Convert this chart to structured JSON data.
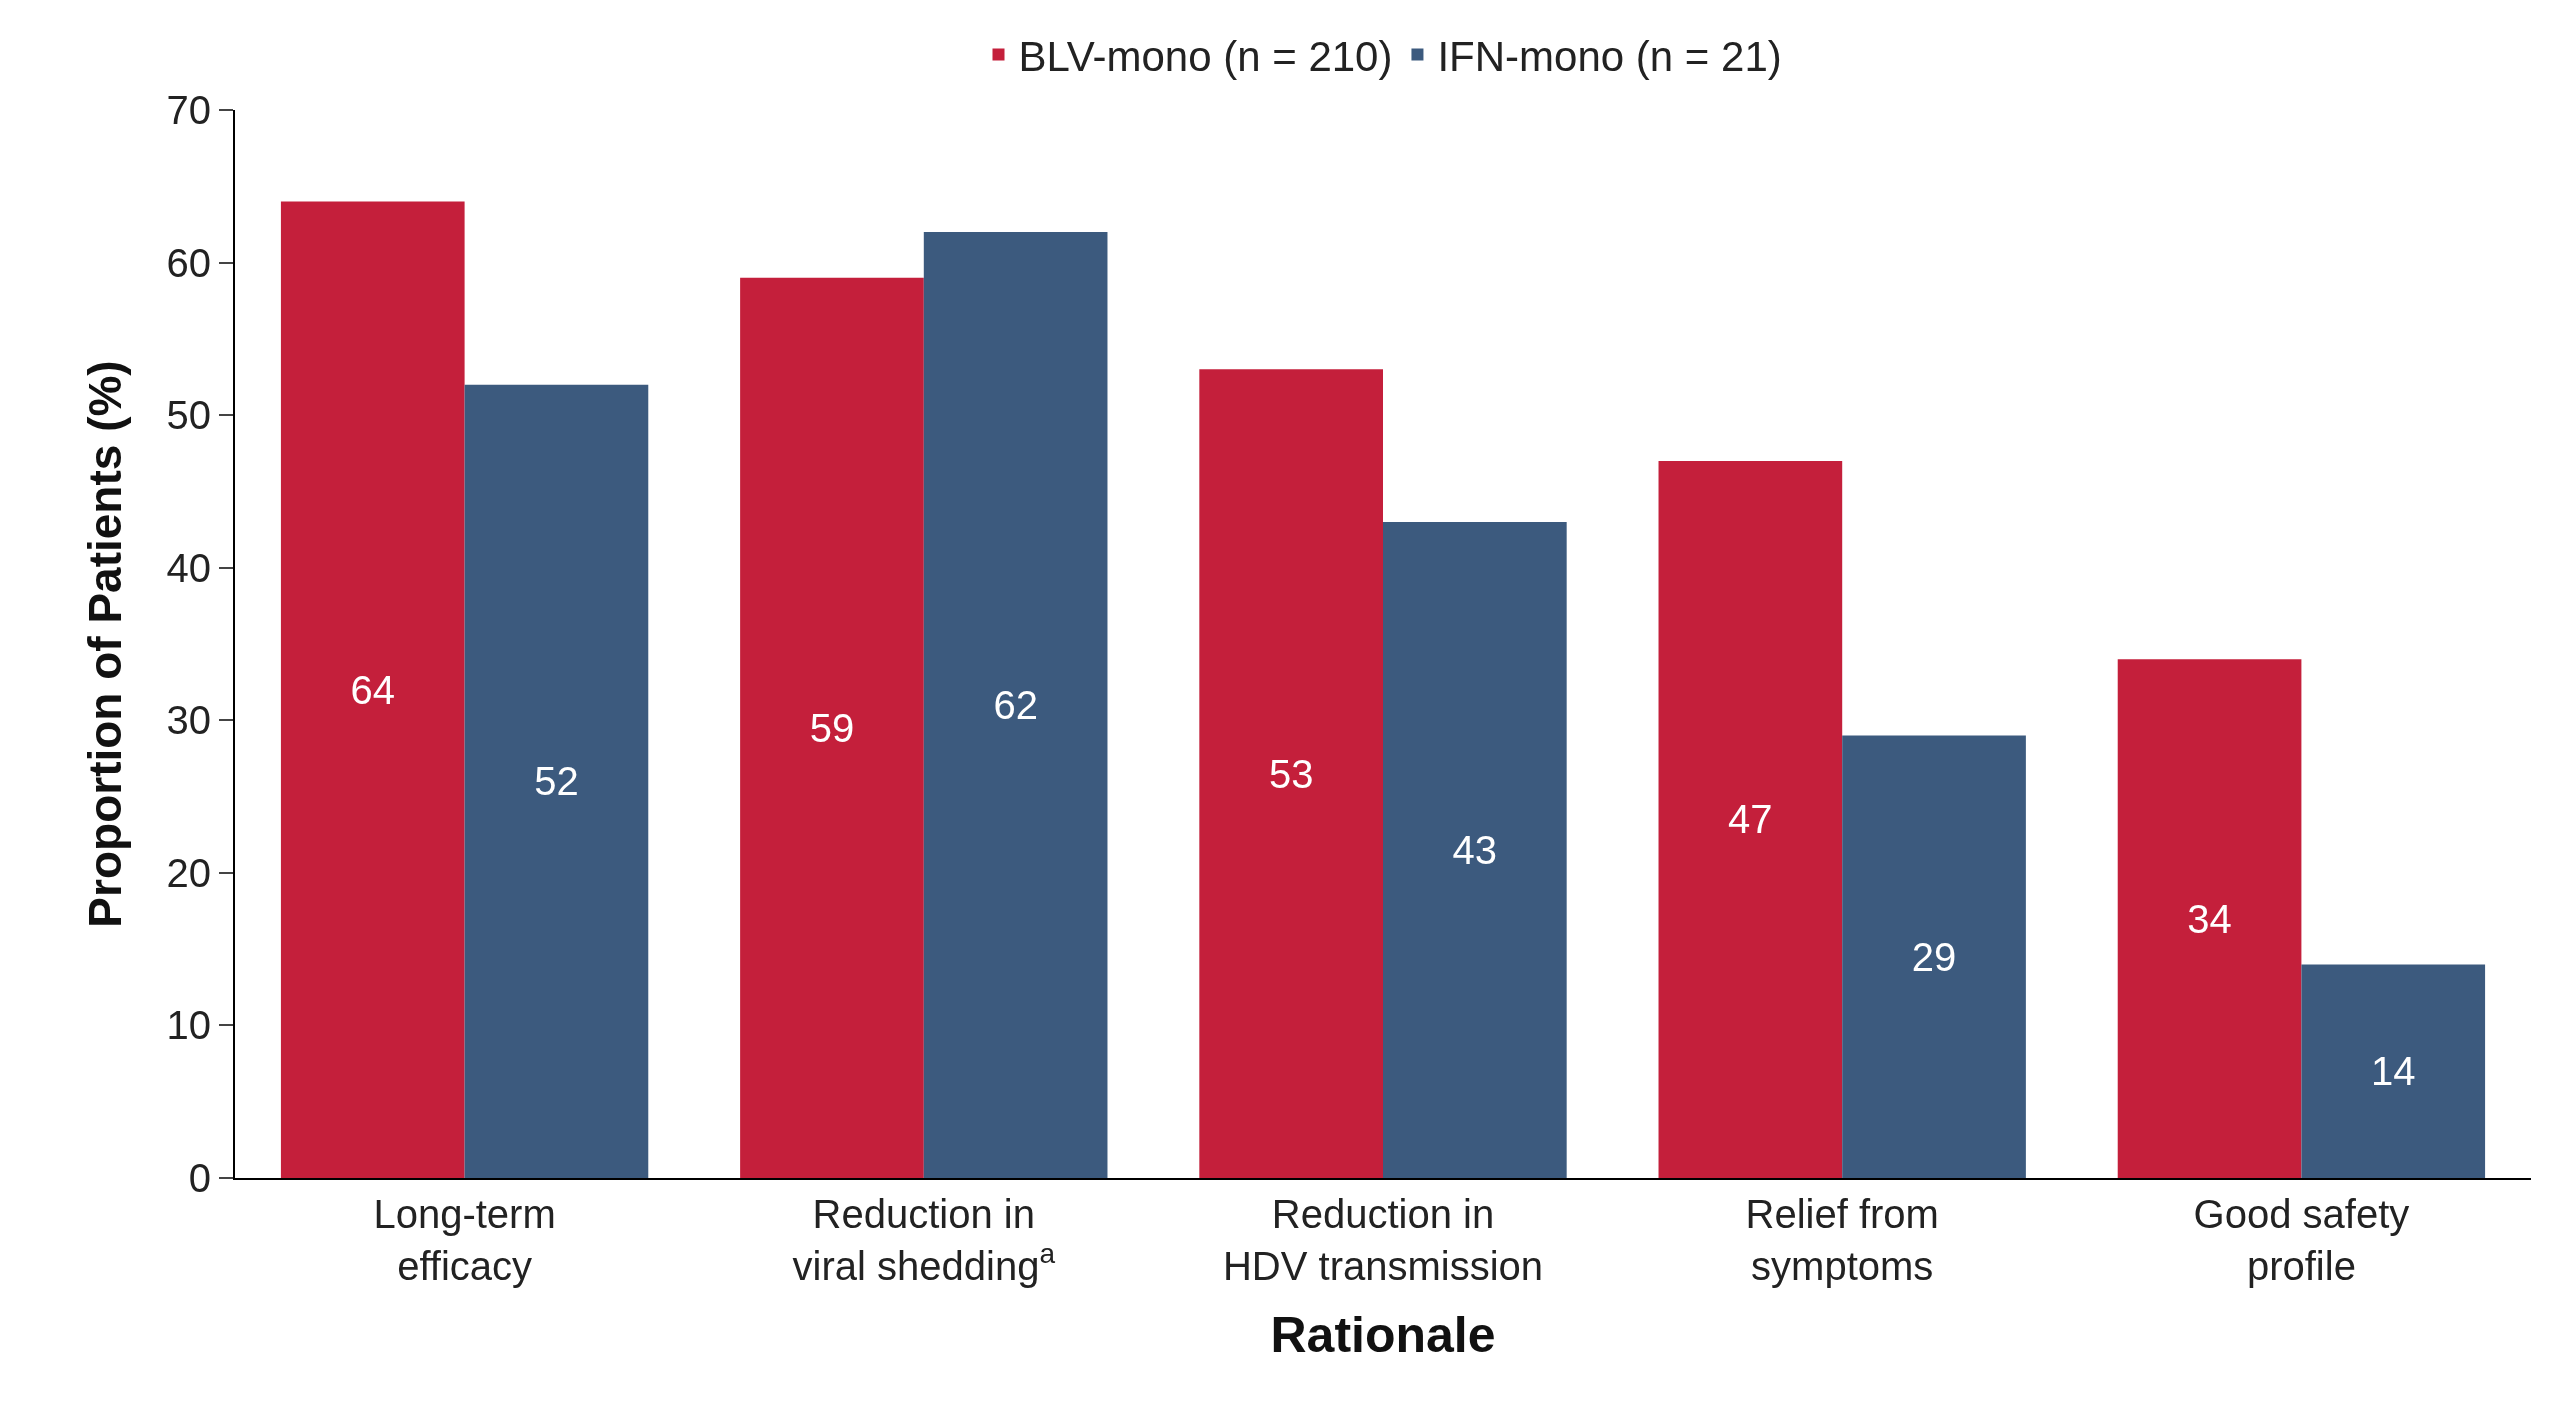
{
  "chart_data": {
    "type": "bar",
    "xlabel": "Rationale",
    "ylabel": "Proportion of Patients (%)",
    "categories": [
      "Long-term\nefficacy",
      "Reduction in\nviral shedding$^{a}$",
      "Reduction in\nHDV transmission",
      "Relief from\nsymptoms",
      "Good safety\nprofile"
    ],
    "series": [
      {
        "name": "BLV-mono (n = 210)",
        "color": "#c41f3b",
        "values": [
          64,
          59,
          53,
          47,
          34
        ]
      },
      {
        "name": "IFN-mono (n = 21)",
        "color": "#3c5a7e",
        "values": [
          52,
          62,
          43,
          29,
          14
        ]
      }
    ],
    "ylim": [
      0,
      70
    ],
    "yticks": [
      0,
      10,
      20,
      30,
      40,
      50,
      60,
      70
    ],
    "grid": false,
    "legend": "top",
    "data_labels": true
  }
}
